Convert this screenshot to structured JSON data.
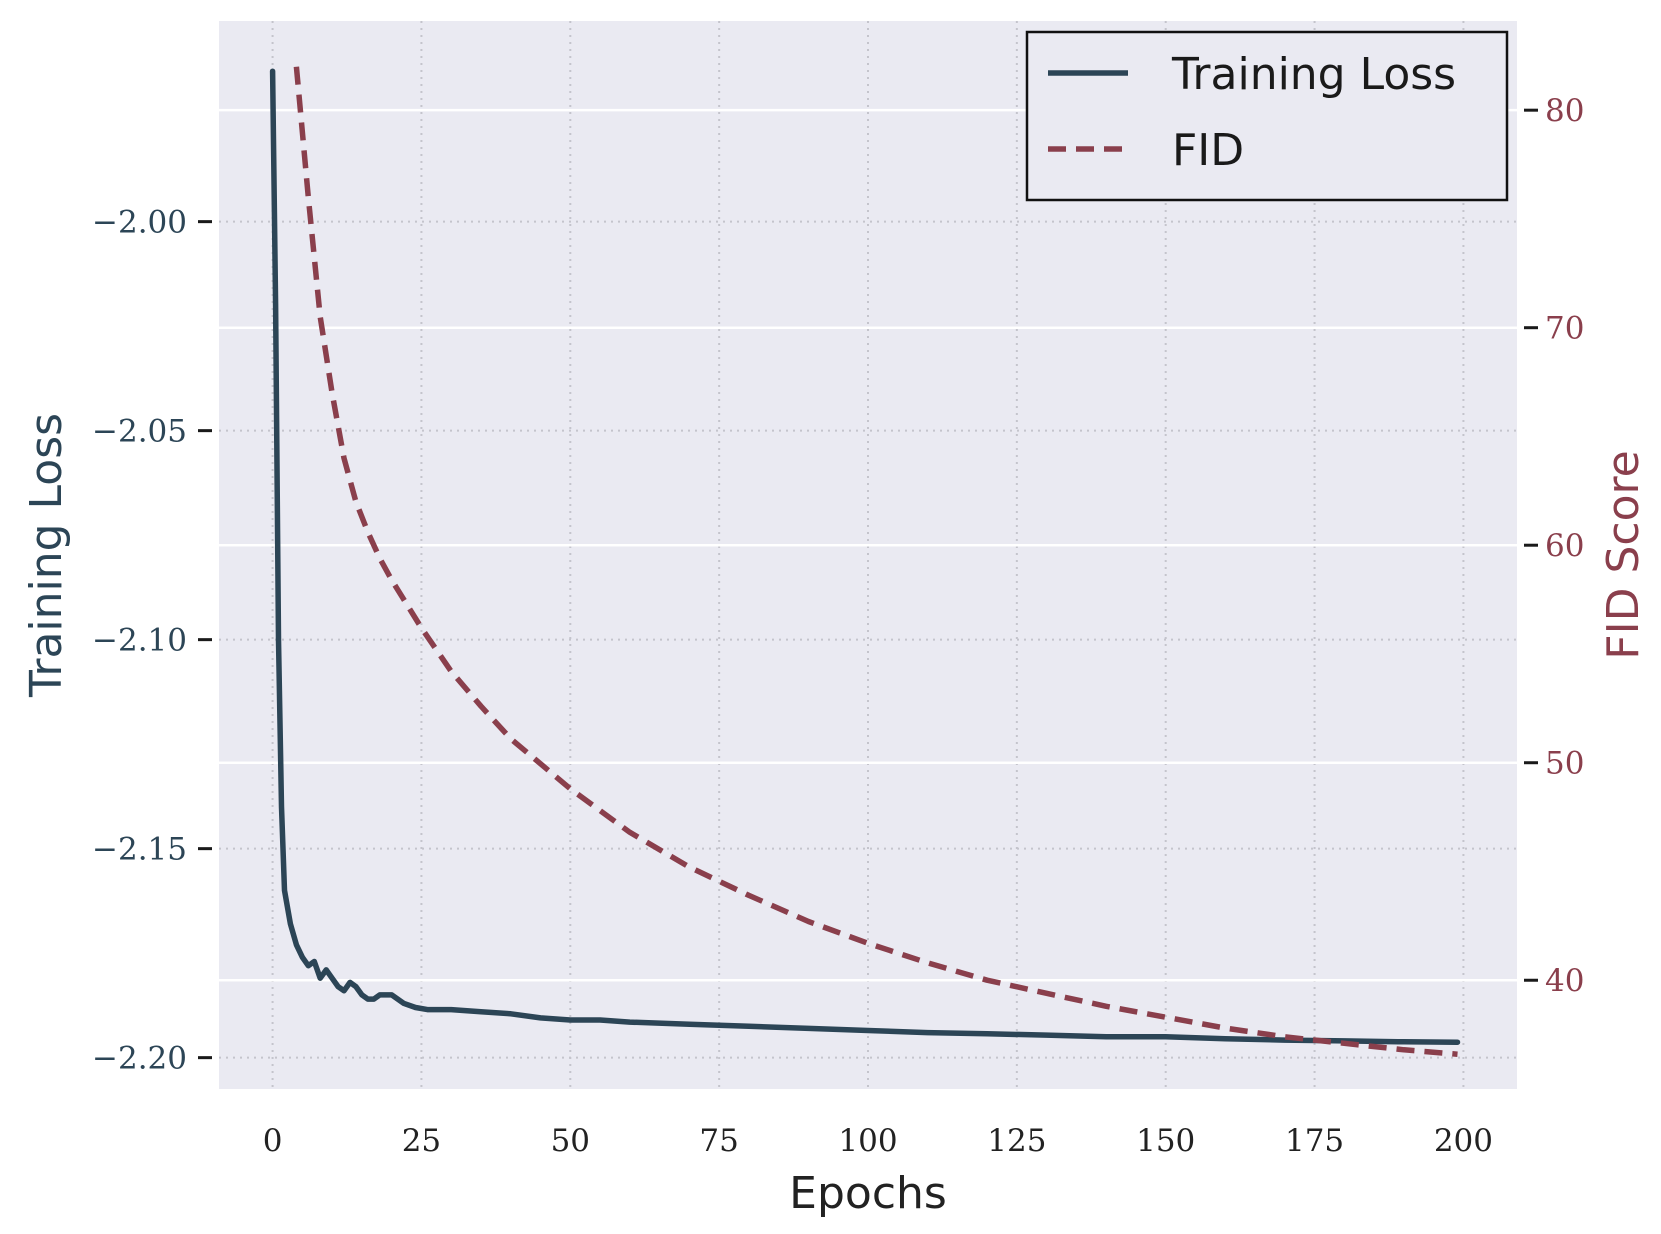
{
  "chart_data": {
    "type": "line",
    "xlabel": "Epochs",
    "ylabel_left": "Training Loss",
    "ylabel_right": "FID Score",
    "xlim": [
      -9,
      209
    ],
    "ylim_left": [
      -2.2075,
      -1.952
    ],
    "ylim_right": [
      35,
      84.1
    ],
    "xticks": [
      0,
      25,
      50,
      75,
      100,
      125,
      150,
      175,
      200
    ],
    "yticks_left": [
      -2.0,
      -2.05,
      -2.1,
      -2.15,
      -2.2
    ],
    "yticks_right": [
      40,
      50,
      60,
      70,
      80
    ],
    "ytick_labels_left": [
      "−2.00",
      "−2.05",
      "−2.10",
      "−2.15",
      "−2.20"
    ],
    "ytick_labels_right": [
      "40",
      "50",
      "60",
      "70",
      "80"
    ],
    "xtick_labels": [
      "0",
      "25",
      "50",
      "75",
      "100",
      "125",
      "150",
      "175",
      "200"
    ],
    "grid": true,
    "legend_position": "top-right",
    "colors": {
      "training_loss": "#2c4556",
      "fid": "#8a3f4c",
      "background": "#eaeaf2"
    },
    "series": [
      {
        "name": "Training Loss",
        "axis": "left",
        "style": "solid",
        "x": [
          0,
          0.5,
          1,
          1.5,
          2,
          3,
          4,
          5,
          6,
          7,
          8,
          9,
          10,
          11,
          12,
          13,
          14,
          15,
          16,
          17,
          18,
          19,
          20,
          22,
          24,
          26,
          30,
          35,
          40,
          45,
          50,
          55,
          60,
          70,
          80,
          90,
          100,
          110,
          120,
          130,
          140,
          150,
          160,
          170,
          180,
          190,
          199
        ],
        "y": [
          -1.964,
          -2.02,
          -2.1,
          -2.14,
          -2.16,
          -2.168,
          -2.173,
          -2.176,
          -2.178,
          -2.177,
          -2.181,
          -2.179,
          -2.181,
          -2.183,
          -2.184,
          -2.182,
          -2.183,
          -2.185,
          -2.186,
          -2.186,
          -2.185,
          -2.185,
          -2.185,
          -2.187,
          -2.188,
          -2.1885,
          -2.1885,
          -2.189,
          -2.1895,
          -2.1905,
          -2.191,
          -2.191,
          -2.1915,
          -2.192,
          -2.1925,
          -2.193,
          -2.1935,
          -2.194,
          -2.1943,
          -2.1946,
          -2.195,
          -2.195,
          -2.1955,
          -2.1958,
          -2.196,
          -2.1962,
          -2.1963
        ]
      },
      {
        "name": "FID",
        "axis": "right",
        "style": "dashed",
        "x": [
          4,
          6,
          8,
          10,
          12,
          14,
          16,
          18,
          20,
          25,
          30,
          35,
          40,
          50,
          60,
          70,
          80,
          90,
          100,
          110,
          120,
          130,
          140,
          150,
          160,
          170,
          180,
          190,
          199
        ],
        "y": [
          82,
          76,
          70.5,
          67,
          64,
          62,
          60.6,
          59.4,
          58.4,
          56.2,
          54.2,
          52.6,
          51.1,
          48.8,
          46.8,
          45.2,
          43.9,
          42.7,
          41.7,
          40.8,
          40.0,
          39.4,
          38.8,
          38.3,
          37.8,
          37.4,
          37.1,
          36.8,
          36.6
        ]
      }
    ]
  }
}
